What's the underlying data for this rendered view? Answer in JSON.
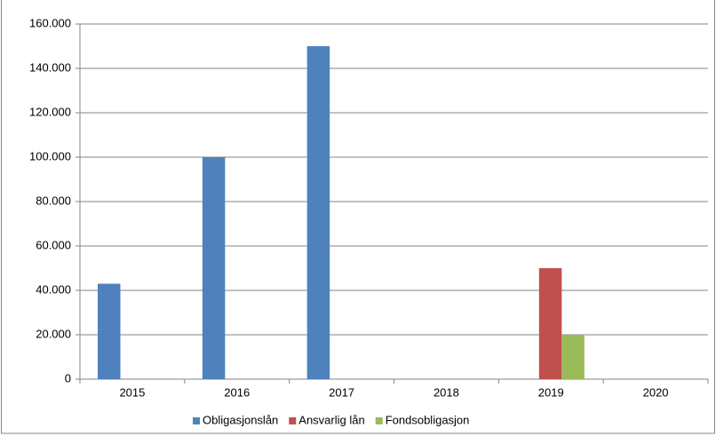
{
  "chart_data": {
    "type": "bar",
    "categories": [
      "2015",
      "2016",
      "2017",
      "2018",
      "2019",
      "2020"
    ],
    "series": [
      {
        "name": "Obligasjonslån",
        "color": "#4f81bd",
        "values": [
          43000,
          100000,
          150000,
          0,
          0,
          0
        ]
      },
      {
        "name": "Ansvarlig lån",
        "color": "#c0504d",
        "values": [
          0,
          0,
          0,
          0,
          50000,
          0
        ]
      },
      {
        "name": "Fondsobligasjon",
        "color": "#9bbb59",
        "values": [
          0,
          0,
          0,
          0,
          20000,
          0
        ]
      }
    ],
    "ylim": [
      0,
      160000
    ],
    "yticks": [
      0,
      {
        "value": 20000,
        "label": "20.000"
      },
      {
        "value": 40000,
        "label": "40.000"
      },
      {
        "value": 60000,
        "label": "60.000"
      },
      {
        "value": 80000,
        "label": "80.000"
      },
      {
        "value": 100000,
        "label": "100.000"
      },
      {
        "value": 120000,
        "label": "120.000"
      },
      {
        "value": 140000,
        "label": "140.000"
      },
      {
        "value": 160000,
        "label": "160.000"
      }
    ],
    "grid": true,
    "legend": "bottom"
  }
}
